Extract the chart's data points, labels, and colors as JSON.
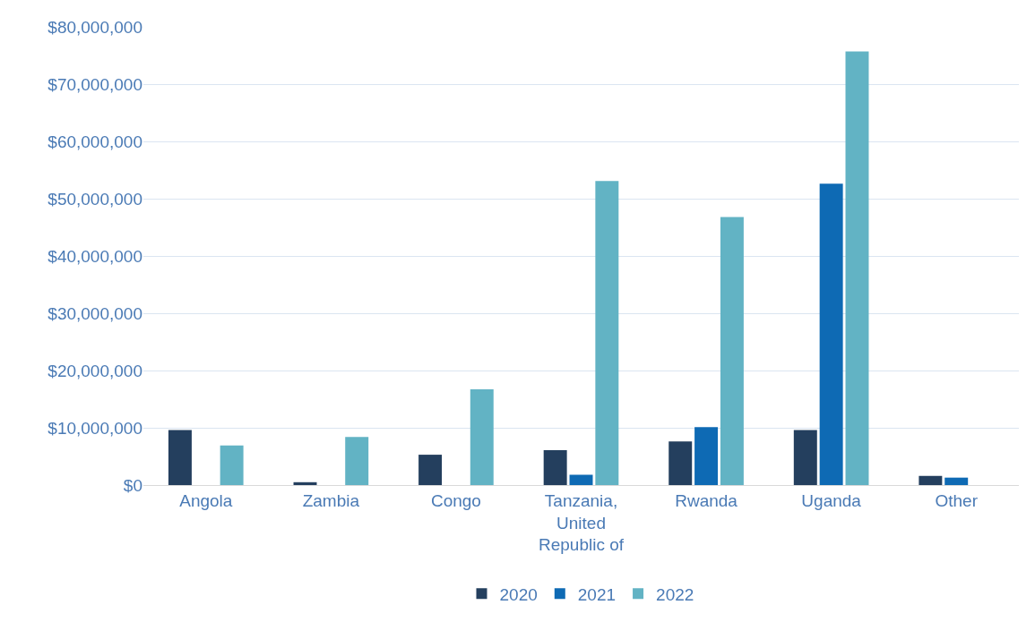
{
  "chart_data": {
    "type": "bar",
    "categories": [
      "Angola",
      "Zambia",
      "Congo",
      "Tanzania, United Republic of",
      "Rwanda",
      "Uganda",
      "Other"
    ],
    "series": [
      {
        "name": "2020",
        "color": "#243f5e",
        "values": [
          9600000,
          500000,
          5300000,
          6100000,
          7600000,
          9600000,
          1600000
        ]
      },
      {
        "name": "2021",
        "color": "#0e6ab4",
        "values": [
          null,
          null,
          null,
          1800000,
          10100000,
          52600000,
          1300000
        ]
      },
      {
        "name": "2022",
        "color": "#62b3c4",
        "values": [
          6900000,
          8400000,
          16700000,
          53100000,
          46800000,
          75700000,
          null
        ]
      }
    ],
    "ylim": [
      0,
      80000000
    ],
    "yticks": [
      {
        "value": 0,
        "label": "$0"
      },
      {
        "value": 10000000,
        "label": "$10,000,000"
      },
      {
        "value": 20000000,
        "label": "$20,000,000"
      },
      {
        "value": 30000000,
        "label": "$30,000,000"
      },
      {
        "value": 40000000,
        "label": "$40,000,000"
      },
      {
        "value": 50000000,
        "label": "$50,000,000"
      },
      {
        "value": 60000000,
        "label": "$60,000,000"
      },
      {
        "value": 70000000,
        "label": "$70,000,000"
      },
      {
        "value": 80000000,
        "label": "$80,000,000"
      }
    ],
    "grid": "y",
    "legend": "bottom"
  }
}
